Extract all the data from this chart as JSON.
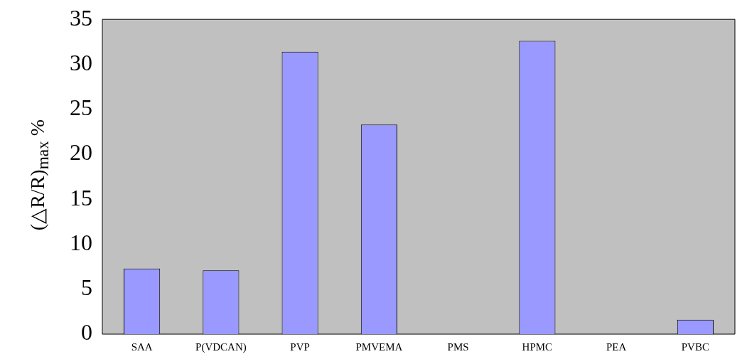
{
  "chart_data": {
    "type": "bar",
    "ylabel": "(△R/R)$_{max}$ %",
    "categories": [
      "SAA",
      "P(VDCAN)",
      "PVP",
      "PMVEMA",
      "PMS",
      "HPMC",
      "PEA",
      "PVBC"
    ],
    "values": [
      7.3,
      7.1,
      31.4,
      23.3,
      0,
      32.6,
      0,
      1.6
    ],
    "color": "#9999ff",
    "ylim": [
      0,
      35
    ],
    "yticks": [
      0,
      5,
      10,
      15,
      20,
      25,
      30,
      35
    ],
    "grid": false,
    "legend": false
  }
}
